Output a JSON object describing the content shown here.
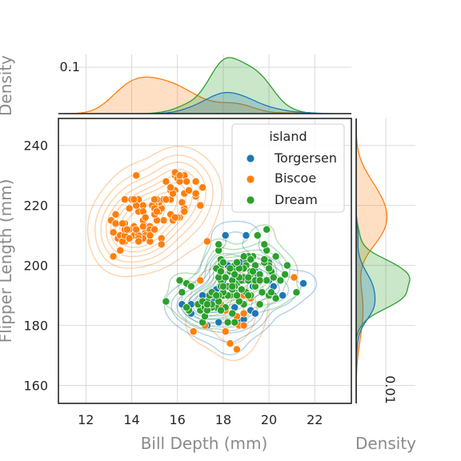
{
  "chart_data": {
    "type": "scatter",
    "title": "",
    "xlabel": "Bill Depth (mm)",
    "ylabel": "Flipper Length (mm)",
    "xlim": [
      10.8,
      23.6
    ],
    "ylim": [
      154,
      249
    ],
    "xticks": [
      12,
      14,
      16,
      18,
      20,
      22
    ],
    "yticks": [
      160,
      180,
      200,
      220,
      240
    ],
    "grid": true,
    "legend": {
      "title": "island",
      "placement": "top-right"
    },
    "series": [
      {
        "name": "Torgersen",
        "color": "#1f77b4",
        "points": [
          [
            18.7,
            181
          ],
          [
            17.4,
            186
          ],
          [
            18.0,
            195
          ],
          [
            19.3,
            193
          ],
          [
            20.6,
            190
          ],
          [
            17.8,
            181
          ],
          [
            19.6,
            195
          ],
          [
            18.1,
            193
          ],
          [
            20.2,
            190
          ],
          [
            17.1,
            186
          ],
          [
            17.3,
            180
          ],
          [
            18.9,
            182
          ],
          [
            18.6,
            191
          ],
          [
            19.4,
            198
          ],
          [
            19.2,
            185
          ],
          [
            18.9,
            195
          ],
          [
            19.4,
            184
          ],
          [
            20.0,
            195
          ],
          [
            18.4,
            184
          ],
          [
            21.5,
            194
          ],
          [
            18.3,
            174
          ],
          [
            17.4,
            189
          ],
          [
            18.0,
            185
          ],
          [
            17.8,
            187
          ],
          [
            17.1,
            190
          ],
          [
            18.5,
            186
          ],
          [
            17.9,
            187
          ],
          [
            18.6,
            192
          ],
          [
            19.0,
            190
          ],
          [
            16.6,
            187
          ],
          [
            18.0,
            201
          ],
          [
            20.2,
            193
          ],
          [
            17.0,
            187
          ],
          [
            18.1,
            196
          ],
          [
            16.2,
            187
          ],
          [
            18.8,
            201
          ],
          [
            17.3,
            185
          ],
          [
            16.6,
            184
          ],
          [
            17.7,
            192
          ],
          [
            18.0,
            195
          ],
          [
            18.1,
            210
          ],
          [
            17.6,
            188
          ],
          [
            18.2,
            200
          ],
          [
            19.0,
            210
          ],
          [
            18.4,
            191
          ],
          [
            19.2,
            196
          ]
        ],
        "density_x_peak": 18.4,
        "density_y_peak": 190
      },
      {
        "name": "Biscoe",
        "color": "#ff7f0e",
        "points": [
          [
            18.3,
            174
          ],
          [
            18.7,
            180
          ],
          [
            19.2,
            189
          ],
          [
            18.1,
            185
          ],
          [
            17.2,
            180
          ],
          [
            18.9,
            187
          ],
          [
            18.6,
            183
          ],
          [
            17.9,
            187
          ],
          [
            18.6,
            172
          ],
          [
            18.9,
            180
          ],
          [
            16.7,
            178
          ],
          [
            18.1,
            178
          ],
          [
            17.8,
            188
          ],
          [
            18.9,
            184
          ],
          [
            17.0,
            195
          ],
          [
            21.1,
            196
          ],
          [
            18.9,
            190
          ],
          [
            17.0,
            185
          ],
          [
            17.9,
            193
          ],
          [
            18.5,
            190
          ],
          [
            13.2,
            211
          ],
          [
            16.3,
            230
          ],
          [
            14.1,
            210
          ],
          [
            15.2,
            218
          ],
          [
            14.5,
            215
          ],
          [
            13.5,
            210
          ],
          [
            14.6,
            211
          ],
          [
            15.3,
            219
          ],
          [
            13.4,
            209
          ],
          [
            15.4,
            215
          ],
          [
            13.7,
            214
          ],
          [
            16.1,
            216
          ],
          [
            13.7,
            214
          ],
          [
            14.6,
            213
          ],
          [
            14.6,
            210
          ],
          [
            15.7,
            217
          ],
          [
            13.5,
            210
          ],
          [
            15.2,
            221
          ],
          [
            14.5,
            209
          ],
          [
            15.1,
            222
          ],
          [
            14.3,
            218
          ],
          [
            14.5,
            215
          ],
          [
            14.5,
            213
          ],
          [
            15.8,
            215
          ],
          [
            13.1,
            215
          ],
          [
            15.1,
            215
          ],
          [
            14.3,
            210
          ],
          [
            15.0,
            220
          ],
          [
            14.3,
            222
          ],
          [
            15.3,
            209
          ],
          [
            15.3,
            207
          ],
          [
            14.2,
            230
          ],
          [
            14.5,
            220
          ],
          [
            17.0,
            220
          ],
          [
            14.8,
            213
          ],
          [
            16.3,
            219
          ],
          [
            13.7,
            208
          ],
          [
            17.3,
            208
          ],
          [
            13.6,
            208
          ],
          [
            15.7,
            225
          ],
          [
            13.7,
            210
          ],
          [
            16.0,
            216
          ],
          [
            13.7,
            222
          ],
          [
            15.0,
            217
          ],
          [
            15.9,
            225
          ],
          [
            13.9,
            209
          ],
          [
            13.9,
            219
          ],
          [
            15.9,
            216
          ],
          [
            13.3,
            214
          ],
          [
            15.8,
            224
          ],
          [
            14.2,
            220
          ],
          [
            14.1,
            213
          ],
          [
            15.9,
            230
          ],
          [
            13.7,
            212
          ],
          [
            15.4,
            222
          ],
          [
            14.9,
            220
          ],
          [
            15.7,
            222
          ],
          [
            13.9,
            212
          ],
          [
            16.0,
            229
          ],
          [
            14.3,
            209
          ],
          [
            15.8,
            224
          ],
          [
            15.0,
            219
          ],
          [
            14.0,
            222
          ],
          [
            16.8,
            223
          ],
          [
            16.2,
            221
          ],
          [
            14.8,
            212
          ],
          [
            16.3,
            224
          ],
          [
            13.8,
            212
          ],
          [
            16.4,
            228
          ],
          [
            14.5,
            218
          ],
          [
            15.1,
            218
          ],
          [
            14.2,
            212
          ],
          [
            15.5,
            228
          ],
          [
            13.2,
            203
          ],
          [
            16.5,
            225
          ],
          [
            14.3,
            208
          ],
          [
            16.1,
            228
          ],
          [
            15.0,
            212
          ],
          [
            15.7,
            226
          ],
          [
            15.9,
            231
          ],
          [
            13.3,
            217
          ],
          [
            16.8,
            228
          ],
          [
            13.5,
            205
          ],
          [
            15.0,
            222
          ],
          [
            14.8,
            208
          ],
          [
            16.1,
            230
          ],
          [
            13.6,
            214
          ],
          [
            16.3,
            218
          ],
          [
            14.8,
            210
          ],
          [
            17.1,
            226
          ],
          [
            14.6,
            216
          ],
          [
            16.8,
            224
          ],
          [
            14.1,
            222
          ],
          [
            15.5,
            222
          ]
        ],
        "density_x_peak": 14.7,
        "density_y_peak": 214
      },
      {
        "name": "Dream",
        "color": "#2ca02c",
        "points": [
          [
            18.4,
            184
          ],
          [
            19.9,
            195
          ],
          [
            18.1,
            190
          ],
          [
            20.1,
            198
          ],
          [
            17.8,
            188
          ],
          [
            17.9,
            202
          ],
          [
            17.0,
            185
          ],
          [
            20.5,
            195
          ],
          [
            17.7,
            186
          ],
          [
            19.2,
            190
          ],
          [
            16.9,
            187
          ],
          [
            19.0,
            191
          ],
          [
            19.6,
            187
          ],
          [
            18.6,
            194
          ],
          [
            18.4,
            195
          ],
          [
            19.7,
            191
          ],
          [
            17.1,
            181
          ],
          [
            18.8,
            195
          ],
          [
            17.8,
            190
          ],
          [
            20.0,
            190
          ],
          [
            18.0,
            190
          ],
          [
            18.5,
            200
          ],
          [
            16.1,
            195
          ],
          [
            18.3,
            198
          ],
          [
            17.9,
            199
          ],
          [
            19.0,
            196
          ],
          [
            18.5,
            191
          ],
          [
            17.2,
            187
          ],
          [
            20.3,
            189
          ],
          [
            17.9,
            200
          ],
          [
            17.2,
            186
          ],
          [
            18.5,
            193
          ],
          [
            17.3,
            188
          ],
          [
            18.4,
            192
          ],
          [
            19.5,
            196
          ],
          [
            20.7,
            197
          ],
          [
            17.2,
            183
          ],
          [
            18.5,
            181
          ],
          [
            17.5,
            190
          ],
          [
            17.5,
            186
          ],
          [
            18.3,
            190
          ],
          [
            18.2,
            190
          ],
          [
            17.9,
            195
          ],
          [
            20.1,
            191
          ],
          [
            18.5,
            198
          ],
          [
            18.2,
            181
          ],
          [
            19.5,
            196
          ],
          [
            19.1,
            190
          ],
          [
            18.0,
            191
          ],
          [
            19.5,
            197
          ],
          [
            17.8,
            205
          ],
          [
            18.1,
            186
          ],
          [
            17.3,
            185
          ],
          [
            18.9,
            187
          ],
          [
            16.4,
            194
          ],
          [
            19.0,
            201
          ],
          [
            17.4,
            190
          ],
          [
            19.4,
            200
          ],
          [
            17.8,
            196
          ],
          [
            19.3,
            203
          ],
          [
            18.0,
            201
          ],
          [
            20.3,
            203
          ],
          [
            18.2,
            193
          ],
          [
            19.3,
            195
          ],
          [
            17.7,
            199
          ],
          [
            18.7,
            188
          ],
          [
            19.2,
            198
          ],
          [
            18.0,
            201
          ],
          [
            19.9,
            205
          ],
          [
            18.9,
            196
          ],
          [
            20.0,
            201
          ],
          [
            18.4,
            195
          ],
          [
            19.5,
            210
          ],
          [
            17.9,
            193
          ],
          [
            19.0,
            200
          ],
          [
            19.5,
            197
          ],
          [
            16.6,
            193
          ],
          [
            19.2,
            197
          ],
          [
            18.4,
            192
          ],
          [
            18.4,
            195
          ],
          [
            20.0,
            200
          ],
          [
            18.9,
            199
          ],
          [
            19.1,
            203
          ],
          [
            18.3,
            199
          ],
          [
            19.6,
            197
          ],
          [
            18.7,
            196
          ],
          [
            16.5,
            185
          ],
          [
            19.8,
            201
          ],
          [
            17.5,
            187
          ],
          [
            18.8,
            192
          ],
          [
            18.4,
            193
          ],
          [
            19.8,
            207
          ],
          [
            17.1,
            188
          ],
          [
            17.5,
            191
          ],
          [
            18.6,
            190
          ],
          [
            19.4,
            193
          ],
          [
            16.2,
            191
          ],
          [
            19.9,
            212
          ],
          [
            17.8,
            207
          ],
          [
            21.2,
            191
          ],
          [
            18.8,
            192
          ],
          [
            15.5,
            188
          ],
          [
            19.8,
            202
          ],
          [
            17.3,
            187
          ],
          [
            18.7,
            199
          ],
          [
            17.9,
            198
          ],
          [
            19.4,
            195
          ],
          [
            18.6,
            201
          ],
          [
            18.9,
            203
          ],
          [
            17.8,
            190
          ],
          [
            20.8,
            200
          ],
          [
            19.1,
            195
          ],
          [
            18.1,
            196
          ],
          [
            19.3,
            198
          ],
          [
            17.8,
            188
          ],
          [
            19.2,
            202
          ],
          [
            19.6,
            195
          ],
          [
            17.7,
            190
          ],
          [
            20.2,
            196
          ],
          [
            18.5,
            197
          ],
          [
            17.9,
            185
          ],
          [
            16.4,
            186
          ],
          [
            20.0,
            199
          ],
          [
            18.0,
            193
          ],
          [
            19.1,
            196
          ]
        ],
        "density_x_peak": 18.4,
        "density_y_peak": 193
      }
    ],
    "marginal_x": {
      "ylabel": "Density",
      "tick_label": "0.1",
      "tick_value": 0.1
    },
    "marginal_y": {
      "xlabel": "Density",
      "tick_label": "0.01",
      "tick_value": 0.01
    }
  }
}
